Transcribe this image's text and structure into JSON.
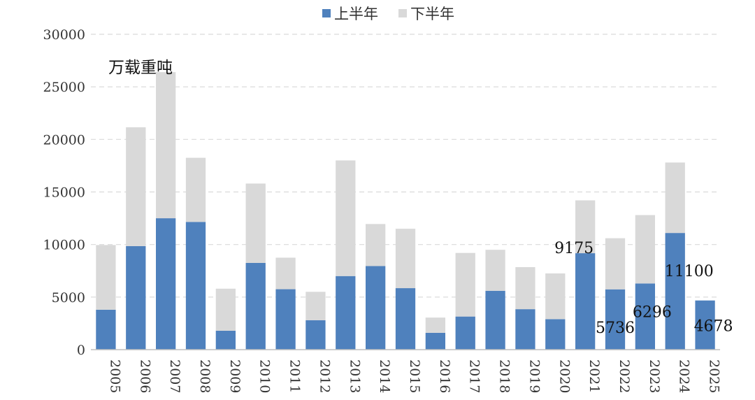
{
  "chart_data": {
    "type": "bar",
    "stacked": true,
    "unit_label": "万载重吨",
    "categories": [
      "2005",
      "2006",
      "2007",
      "2008",
      "2009",
      "2010",
      "2011",
      "2012",
      "2013",
      "2014",
      "2015",
      "2016",
      "2017",
      "2018",
      "2019",
      "2020",
      "2021",
      "2022",
      "2023",
      "2024",
      "2025"
    ],
    "series": [
      {
        "name": "上半年",
        "color": "#4f81bd",
        "values": [
          3800,
          9850,
          12500,
          12150,
          1800,
          8250,
          5750,
          2800,
          7000,
          7950,
          5850,
          1600,
          3150,
          5600,
          3850,
          2900,
          9175,
          5736,
          6296,
          11100,
          4678
        ]
      },
      {
        "name": "下半年",
        "color": "#d9d9d9",
        "values": [
          6150,
          11300,
          13900,
          6100,
          4000,
          7550,
          3000,
          2700,
          11000,
          4000,
          5650,
          1450,
          6050,
          3900,
          4000,
          4350,
          5025,
          4864,
          6504,
          6700,
          0
        ]
      }
    ],
    "data_labels": [
      {
        "category": "2021",
        "series": "上半年",
        "text": "9175"
      },
      {
        "category": "2022",
        "series": "上半年",
        "text": "5736"
      },
      {
        "category": "2023",
        "series": "上半年",
        "text": "6296"
      },
      {
        "category": "2024",
        "series": "上半年",
        "text": "11100"
      },
      {
        "category": "2025",
        "series": "上半年",
        "text": "4678"
      }
    ],
    "yticks": [
      "0",
      "5000",
      "10000",
      "15000",
      "20000",
      "25000",
      "30000"
    ],
    "ylim": [
      0,
      30000
    ],
    "grid": true,
    "legend_position": "top-center"
  }
}
